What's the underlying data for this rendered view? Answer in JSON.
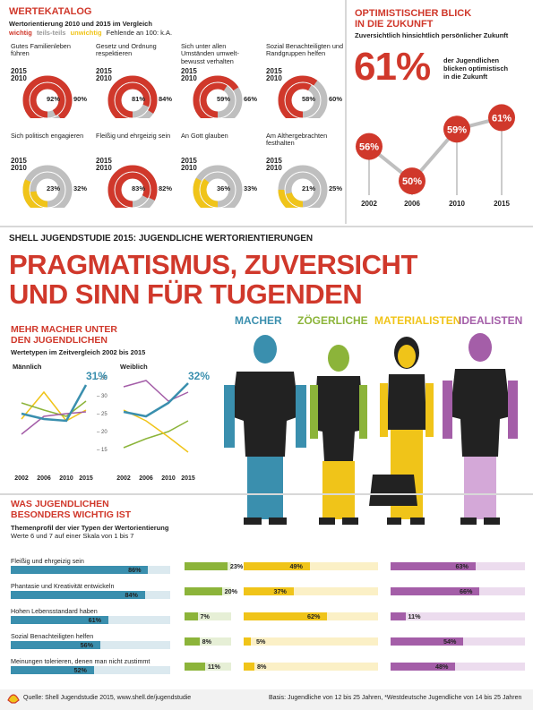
{
  "wertekatalog": {
    "title": "WERTEKATALOG",
    "subtitle": "Wertorientierung 2010 und 2015 im Vergleich",
    "legend": {
      "wichtig": "wichtig",
      "teils": "teils-teils",
      "unwichtig": "unwichtig",
      "ka": "Fehlende an 100: k.A."
    },
    "year_a": "2015",
    "year_b": "2010",
    "items": [
      {
        "label": "Gutes Familienleben führen",
        "v2015": "92%",
        "v2010": "90%",
        "f2015": 0.92,
        "f2010": 0.9,
        "color": "#d0382b"
      },
      {
        "label": "Gesetz und Ordnung respektieren",
        "v2015": "81%",
        "v2010": "84%",
        "f2015": 0.81,
        "f2010": 0.84,
        "color": "#d0382b"
      },
      {
        "label": "Sich unter allen Umständen umwelt-bewusst verhalten",
        "v2015": "59%",
        "v2010": "66%",
        "f2015": 0.59,
        "f2010": 0.66,
        "color": "#d0382b"
      },
      {
        "label": "Sozial Benachteiligten und Randgruppen helfen",
        "v2015": "58%",
        "v2010": "60%",
        "f2015": 0.58,
        "f2010": 0.6,
        "color": "#d0382b"
      },
      {
        "label": "Sich politisch engagieren",
        "v2015": "23%",
        "v2010": "32%",
        "f2015": 0.23,
        "f2010": 0.32,
        "color": "#f0c419"
      },
      {
        "label": "Fleißig und ehrgeizig sein",
        "v2015": "83%",
        "v2010": "82%",
        "f2015": 0.83,
        "f2010": 0.82,
        "color": "#d0382b"
      },
      {
        "label": "An Gott glauben",
        "v2015": "36%",
        "v2010": "33%",
        "f2015": 0.36,
        "f2010": 0.33,
        "color": "#f0c419"
      },
      {
        "label": "Am Althergebrachten festhalten",
        "v2015": "21%",
        "v2010": "25%",
        "f2015": 0.21,
        "f2010": 0.25,
        "color": "#f0c419"
      }
    ]
  },
  "optimismus": {
    "title_1": "OPTIMISTISCHER BLICK",
    "title_2": "IN DIE ZUKUNFT",
    "subtitle": "Zuversichtlich hinsichtlich persönlicher Zukunft",
    "big": "61%",
    "desc_1": "der Jugendlichen",
    "desc_2": "blicken optimistisch",
    "desc_3": "in die Zukunft",
    "points": [
      {
        "year": "2002",
        "value": 56,
        "label": "56%"
      },
      {
        "year": "2006",
        "value": 50,
        "label": "50%"
      },
      {
        "year": "2010",
        "value": 59,
        "label": "59%"
      },
      {
        "year": "2015",
        "value": 61,
        "label": "61%"
      }
    ]
  },
  "headline": {
    "kicker": "SHELL JUGENDSTUDIE 2015: JUGENDLICHE WERTORIENTIERUNGEN",
    "line1": "PRAGMATISMUS, ZUVERSICHT",
    "line2": "UND SINN FÜR TUGENDEN"
  },
  "macher": {
    "title_1": "MEHR MACHER UNTER",
    "title_2": "DEN JUGENDLICHEN",
    "subtitle": "Wertetypen im Zeitvergleich 2002 bis 2015",
    "male": "Männlich",
    "female": "Weiblich",
    "male_value": "31%",
    "female_value": "32%",
    "ticks": [
      "35",
      "30",
      "25",
      "20",
      "15"
    ],
    "years": [
      "2002",
      "2006",
      "2010",
      "2015"
    ]
  },
  "types": {
    "macher": "MACHER",
    "zoegerliche": "ZÖGERLICHE",
    "materialisten": "MATERIALISTEN",
    "idealisten": "IDEALISTEN",
    "colors": {
      "macher": "#3a8fae",
      "zoegerliche": "#8cb43a",
      "materialisten": "#f0c419",
      "idealisten": "#a45ea8"
    }
  },
  "wichtig": {
    "title_1": "WAS JUGENDLICHEN",
    "title_2": "BESONDERS WICHTIG IST",
    "subtitle_1": "Themenprofil der vier Typen der Wertorientierung",
    "subtitle_2": "Werte 6 und 7 auf einer Skala von 1 bis 7",
    "rows": [
      {
        "label": "Fleißig und ehrgeizig sein",
        "macher": "86%",
        "zoeg": "23%",
        "mat": "49%",
        "ideal": "63%",
        "f": [
          0.86,
          0.23,
          0.49,
          0.63
        ]
      },
      {
        "label": "Phantasie und Kreativität entwickeln",
        "macher": "84%",
        "zoeg": "20%",
        "mat": "37%",
        "ideal": "66%",
        "f": [
          0.84,
          0.2,
          0.37,
          0.66
        ]
      },
      {
        "label": "Hohen Lebensstandard haben",
        "macher": "61%",
        "zoeg": "7%",
        "mat": "62%",
        "ideal": "11%",
        "f": [
          0.61,
          0.07,
          0.62,
          0.11
        ]
      },
      {
        "label": "Sozial Benachteiligten helfen",
        "macher": "56%",
        "zoeg": "8%",
        "mat": "5%",
        "ideal": "54%",
        "f": [
          0.56,
          0.08,
          0.05,
          0.54
        ]
      },
      {
        "label": "Meinungen tolerieren, denen man nicht zustimmt",
        "macher": "52%",
        "zoeg": "11%",
        "mat": "8%",
        "ideal": "48%",
        "f": [
          0.52,
          0.11,
          0.08,
          0.48
        ]
      }
    ]
  },
  "footer": {
    "source": "Quelle: Shell Jugendstudie 2015, www.shell.de/jugendstudie",
    "basis": "Basis: Jugendliche von 12 bis 25 Jahren, *Westdeutsche Jugendliche von 14 bis 25 Jahren"
  }
}
